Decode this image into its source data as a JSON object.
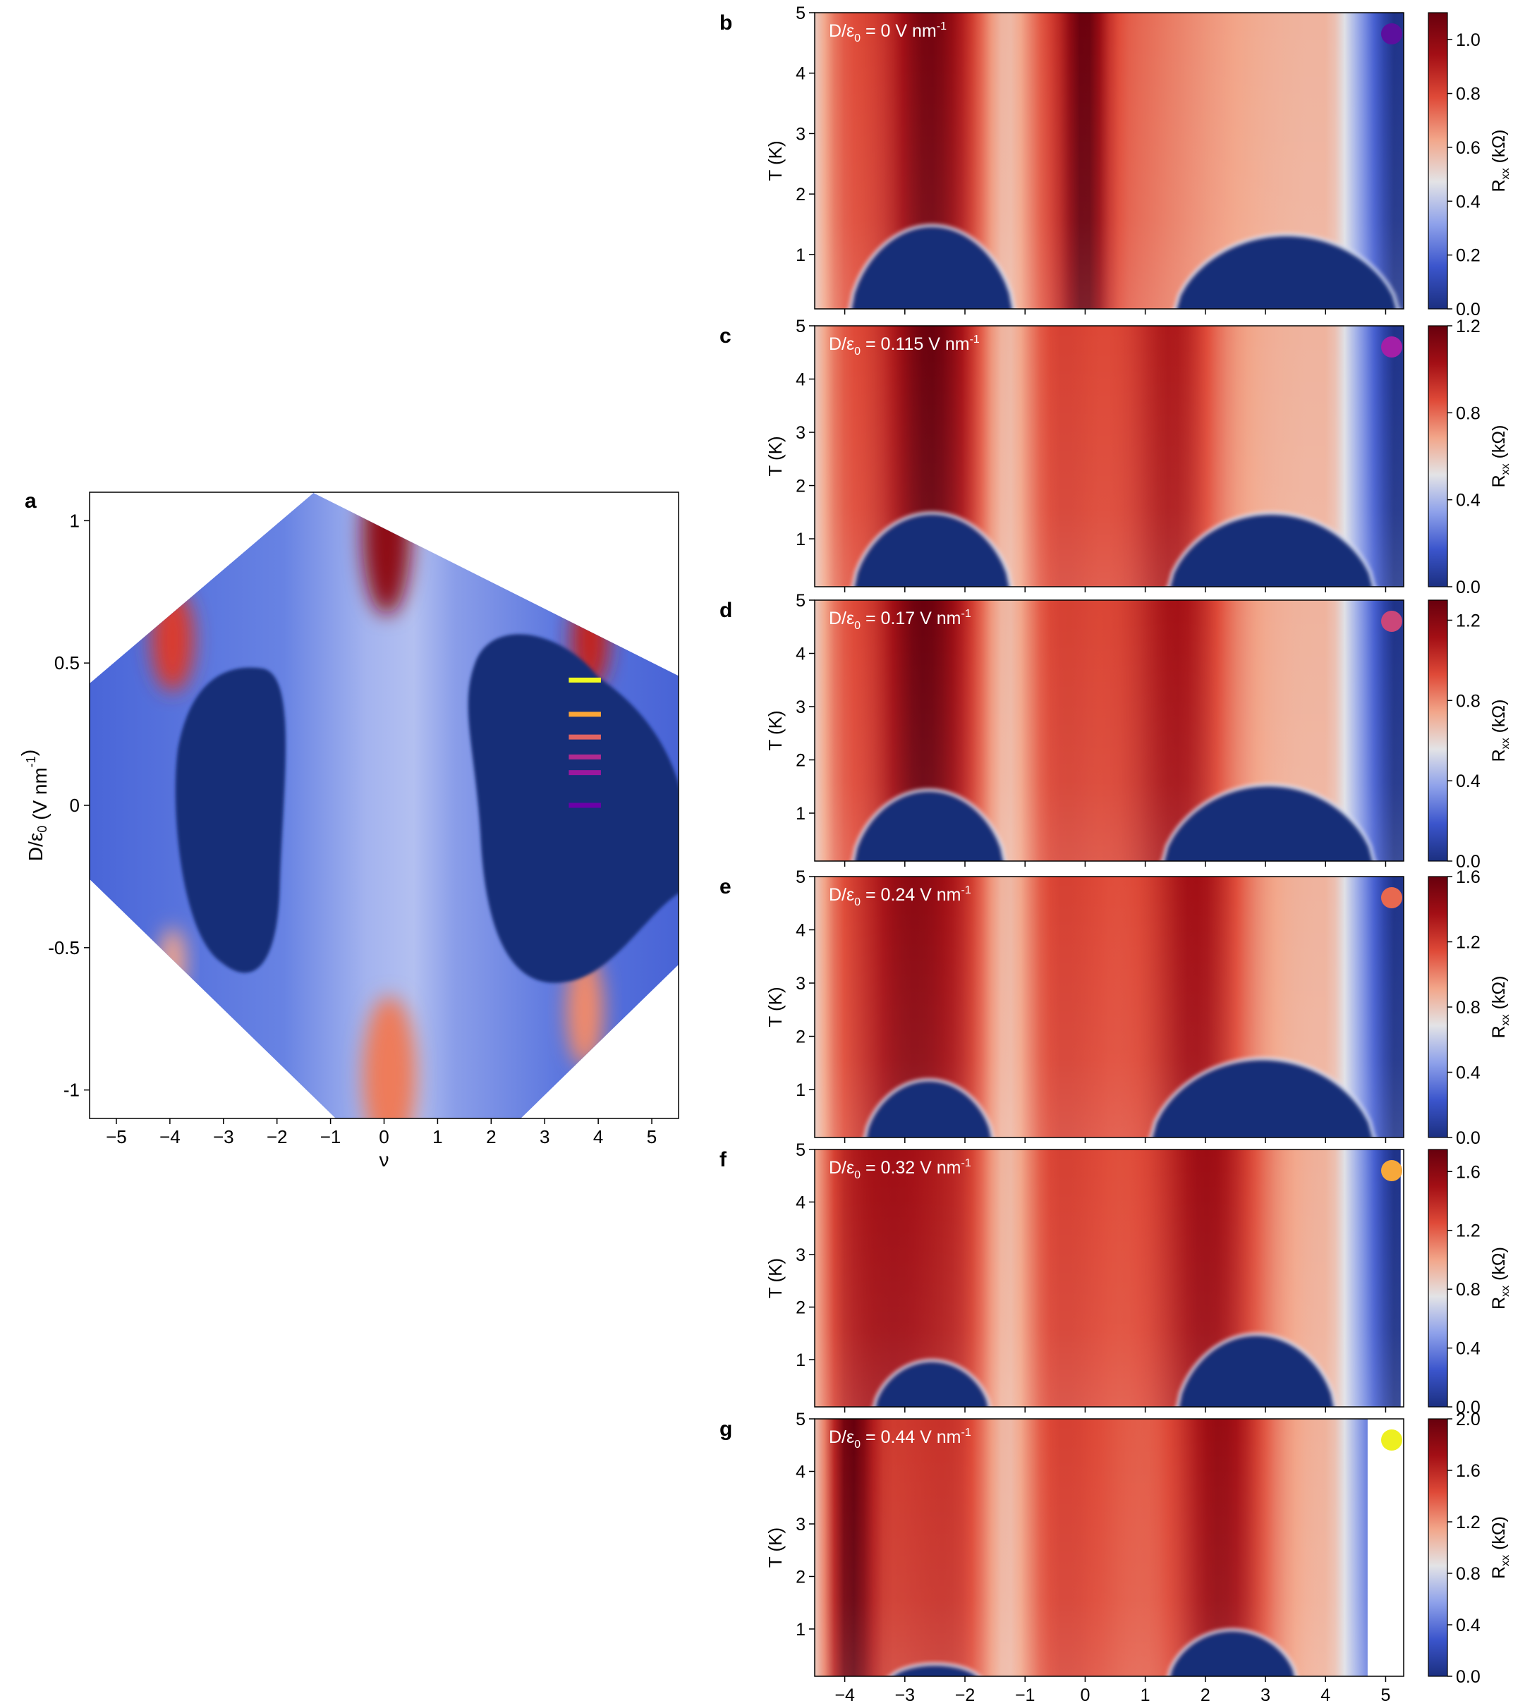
{
  "figure": {
    "background": "#ffffff",
    "colormap": [
      "#1b2f80",
      "#3b55cc",
      "#8ea1ea",
      "#e3e3e6",
      "#f2a68a",
      "#df4a38",
      "#a30f15",
      "#67000d"
    ],
    "dark_region_color": "#192d78"
  },
  "chart_data": [
    {
      "id": "a",
      "panel_label": "a",
      "type": "heatmap",
      "xlabel": "ν",
      "ylabel_main": "D/ε",
      "ylabel_sub": "0",
      "ylabel_tail": " (V nm",
      "ylabel_sup": "-1",
      "ylabel_end": ")",
      "xlim": [
        -5.5,
        5.5
      ],
      "ylim": [
        -1.1,
        1.1
      ],
      "xticks": [
        {
          "value": -5,
          "label": "−5"
        },
        {
          "value": -4,
          "label": "−4"
        },
        {
          "value": -3,
          "label": "−3"
        },
        {
          "value": -2,
          "label": "−2"
        },
        {
          "value": -1,
          "label": "−1"
        },
        {
          "value": 0,
          "label": "0"
        },
        {
          "value": 1,
          "label": "1"
        },
        {
          "value": 2,
          "label": "2"
        },
        {
          "value": 3,
          "label": "3"
        },
        {
          "value": 4,
          "label": "4"
        },
        {
          "value": 5,
          "label": "5"
        }
      ],
      "yticks": [
        {
          "value": 1,
          "label": "1"
        },
        {
          "value": 0.5,
          "label": "0.5"
        },
        {
          "value": 0,
          "label": "0"
        },
        {
          "value": -0.5,
          "label": "-0.5"
        },
        {
          "value": -1,
          "label": "-1"
        }
      ],
      "markers": [
        {
          "D": 0.44,
          "color": "#f0f921"
        },
        {
          "D": 0.32,
          "color": "#fca636"
        },
        {
          "D": 0.24,
          "color": "#e16462"
        },
        {
          "D": 0.17,
          "color": "#b12a90"
        },
        {
          "D": 0.115,
          "color": "#9c179e"
        },
        {
          "D": 0,
          "color": "#6a00a8"
        }
      ],
      "marker_x_range": [
        3.45,
        4.05
      ]
    },
    {
      "id": "b",
      "panel_label": "b",
      "type": "heatmap",
      "label_main": "D/ε",
      "label_sub": "0",
      "label_value": " = 0 V nm",
      "label_sup": "-1",
      "dot_color": "#5c0f9e",
      "xlim": [
        -4.5,
        5.3
      ],
      "ylim": [
        0.1,
        5
      ],
      "yticks": [
        {
          "value": 1,
          "label": "1"
        },
        {
          "value": 2,
          "label": "2"
        },
        {
          "value": 3,
          "label": "3"
        },
        {
          "value": 4,
          "label": "4"
        },
        {
          "value": 5,
          "label": "5"
        }
      ],
      "ylabel": "T (K)",
      "colorbar": {
        "min": 0,
        "max": 1.1,
        "ticks": [
          {
            "value": 0,
            "label": "0.0"
          },
          {
            "value": 0.2,
            "label": "0.2"
          },
          {
            "value": 0.4,
            "label": "0.4"
          },
          {
            "value": 0.6,
            "label": "0.6"
          },
          {
            "value": 0.8,
            "label": "0.8"
          },
          {
            "value": 1.0,
            "label": "1.0"
          }
        ]
      },
      "domes": [
        {
          "center": -2.55,
          "half_width": 1.35,
          "peak_T": 1.45
        },
        {
          "center": 3.35,
          "half_width": 1.85,
          "peak_T": 1.3
        }
      ],
      "stripes": [
        {
          "center": -2.6,
          "width": 0.55,
          "amp": 0.4
        },
        {
          "center": 0,
          "width": 0.35,
          "amp": 0.55
        }
      ],
      "blank_above_nu": null
    },
    {
      "id": "c",
      "panel_label": "c",
      "type": "heatmap",
      "label_main": "D/ε",
      "label_sub": "0",
      "label_value": " = 0.115 V nm",
      "label_sup": "-1",
      "dot_color": "#a31fa7",
      "xlim": [
        -4.5,
        5.3
      ],
      "ylim": [
        0.1,
        5
      ],
      "yticks": [
        {
          "value": 1,
          "label": "1"
        },
        {
          "value": 2,
          "label": "2"
        },
        {
          "value": 3,
          "label": "3"
        },
        {
          "value": 4,
          "label": "4"
        },
        {
          "value": 5,
          "label": "5"
        }
      ],
      "ylabel": "T (K)",
      "colorbar": {
        "min": 0,
        "max": 1.2,
        "ticks": [
          {
            "value": 0,
            "label": "0.0"
          },
          {
            "value": 0.4,
            "label": "0.4"
          },
          {
            "value": 0.8,
            "label": "0.8"
          },
          {
            "value": 1.2,
            "label": "1.2"
          }
        ]
      },
      "domes": [
        {
          "center": -2.55,
          "half_width": 1.3,
          "peak_T": 1.45
        },
        {
          "center": 3.1,
          "half_width": 1.7,
          "peak_T": 1.45
        }
      ],
      "stripes": [
        {
          "center": -2.6,
          "width": 0.6,
          "amp": 0.45
        },
        {
          "center": 1.5,
          "width": 0.7,
          "amp": 0.4
        }
      ],
      "blank_above_nu": null
    },
    {
      "id": "d",
      "panel_label": "d",
      "type": "heatmap",
      "label_main": "D/ε",
      "label_sub": "0",
      "label_value": " = 0.17 V nm",
      "label_sup": "-1",
      "dot_color": "#cb4679",
      "xlim": [
        -4.5,
        5.3
      ],
      "ylim": [
        0.1,
        5
      ],
      "yticks": [
        {
          "value": 1,
          "label": "1"
        },
        {
          "value": 2,
          "label": "2"
        },
        {
          "value": 3,
          "label": "3"
        },
        {
          "value": 4,
          "label": "4"
        },
        {
          "value": 5,
          "label": "5"
        }
      ],
      "ylabel": "T (K)",
      "colorbar": {
        "min": 0,
        "max": 1.3,
        "ticks": [
          {
            "value": 0,
            "label": "0.0"
          },
          {
            "value": 0.4,
            "label": "0.4"
          },
          {
            "value": 0.8,
            "label": "0.8"
          },
          {
            "value": 1.2,
            "label": "1.2"
          }
        ]
      },
      "domes": [
        {
          "center": -2.6,
          "half_width": 1.25,
          "peak_T": 1.4
        },
        {
          "center": 3.05,
          "half_width": 1.75,
          "peak_T": 1.5
        }
      ],
      "stripes": [
        {
          "center": -2.7,
          "width": 0.6,
          "amp": 0.45
        },
        {
          "center": 1.6,
          "width": 0.8,
          "amp": 0.45
        }
      ],
      "blank_above_nu": null
    },
    {
      "id": "e",
      "panel_label": "e",
      "type": "heatmap",
      "label_main": "D/ε",
      "label_sub": "0",
      "label_value": " = 0.24 V nm",
      "label_sup": "-1",
      "dot_color": "#e8684f",
      "xlim": [
        -4.5,
        5.3
      ],
      "ylim": [
        0.1,
        5
      ],
      "yticks": [
        {
          "value": 1,
          "label": "1"
        },
        {
          "value": 2,
          "label": "2"
        },
        {
          "value": 3,
          "label": "3"
        },
        {
          "value": 4,
          "label": "4"
        },
        {
          "value": 5,
          "label": "5"
        }
      ],
      "ylabel": "T (K)",
      "colorbar": {
        "min": 0,
        "max": 1.6,
        "ticks": [
          {
            "value": 0,
            "label": "0.0"
          },
          {
            "value": 0.4,
            "label": "0.4"
          },
          {
            "value": 0.8,
            "label": "0.8"
          },
          {
            "value": 1.2,
            "label": "1.2"
          },
          {
            "value": 1.6,
            "label": "1.6"
          }
        ]
      },
      "domes": [
        {
          "center": -2.6,
          "half_width": 1.05,
          "peak_T": 1.15
        },
        {
          "center": 2.95,
          "half_width": 1.85,
          "peak_T": 1.55
        }
      ],
      "stripes": [
        {
          "center": -2.9,
          "width": 0.8,
          "amp": 0.3
        },
        {
          "center": 1.9,
          "width": 0.8,
          "amp": 0.5
        }
      ],
      "blank_above_nu": null
    },
    {
      "id": "f",
      "panel_label": "f",
      "type": "heatmap",
      "label_main": "D/ε",
      "label_sub": "0",
      "label_value": " = 0.32 V nm",
      "label_sup": "-1",
      "dot_color": "#f7a83a",
      "xlim": [
        -4.5,
        5.3
      ],
      "ylim": [
        0.1,
        5
      ],
      "yticks": [
        {
          "value": 1,
          "label": "1"
        },
        {
          "value": 2,
          "label": "2"
        },
        {
          "value": 3,
          "label": "3"
        },
        {
          "value": 4,
          "label": "4"
        },
        {
          "value": 5,
          "label": "5"
        }
      ],
      "ylabel": "T (K)",
      "colorbar": {
        "min": 0,
        "max": 1.75,
        "ticks": [
          {
            "value": 0,
            "label": "0.0"
          },
          {
            "value": 0.4,
            "label": "0.4"
          },
          {
            "value": 0.8,
            "label": "0.8"
          },
          {
            "value": 1.2,
            "label": "1.2"
          },
          {
            "value": 1.6,
            "label": "1.6"
          }
        ]
      },
      "domes": [
        {
          "center": -2.55,
          "half_width": 0.95,
          "peak_T": 0.95
        },
        {
          "center": 2.85,
          "half_width": 1.3,
          "peak_T": 1.45
        }
      ],
      "stripes": [
        {
          "center": -3.5,
          "width": 1.2,
          "amp": 0.25
        },
        {
          "center": 2.1,
          "width": 0.9,
          "amp": 0.55
        }
      ],
      "blank_above_nu": 5.25
    },
    {
      "id": "g",
      "panel_label": "g",
      "type": "heatmap",
      "label_main": "D/ε",
      "label_sub": "0",
      "label_value": " = 0.44 V nm",
      "label_sup": "-1",
      "dot_color": "#eef020",
      "xlim": [
        -4.5,
        5.3
      ],
      "ylim": [
        0.1,
        5
      ],
      "yticks": [
        {
          "value": 1,
          "label": "1"
        },
        {
          "value": 2,
          "label": "2"
        },
        {
          "value": 3,
          "label": "3"
        },
        {
          "value": 4,
          "label": "4"
        },
        {
          "value": 5,
          "label": "5"
        }
      ],
      "ylabel": "T (K)",
      "xlabel": "ν",
      "xticks": [
        {
          "value": -4,
          "label": "−4"
        },
        {
          "value": -3,
          "label": "−3"
        },
        {
          "value": -2,
          "label": "−2"
        },
        {
          "value": -1,
          "label": "−1"
        },
        {
          "value": 0,
          "label": "0"
        },
        {
          "value": 1,
          "label": "1"
        },
        {
          "value": 2,
          "label": "2"
        },
        {
          "value": 3,
          "label": "3"
        },
        {
          "value": 4,
          "label": "4"
        },
        {
          "value": 5,
          "label": "5"
        }
      ],
      "colorbar": {
        "min": 0,
        "max": 2.0,
        "ticks": [
          {
            "value": 0,
            "label": "0.0"
          },
          {
            "value": 0.4,
            "label": "0.4"
          },
          {
            "value": 0.8,
            "label": "0.8"
          },
          {
            "value": 1.2,
            "label": "1.2"
          },
          {
            "value": 1.6,
            "label": "1.6"
          },
          {
            "value": 2.0,
            "label": "2.0"
          }
        ]
      },
      "domes": [
        {
          "center": -2.5,
          "half_width": 0.75,
          "peak_T": 0.3
        },
        {
          "center": 2.45,
          "half_width": 1.05,
          "peak_T": 0.95
        }
      ],
      "stripes": [
        {
          "center": -3.9,
          "width": 0.35,
          "amp": 0.6
        },
        {
          "center": 2.3,
          "width": 0.8,
          "amp": 0.6
        }
      ],
      "blank_above_nu": 4.7
    }
  ],
  "colorbar_label_main": "R",
  "colorbar_label_sub": "xx",
  "colorbar_label_tail": " (kΩ)"
}
